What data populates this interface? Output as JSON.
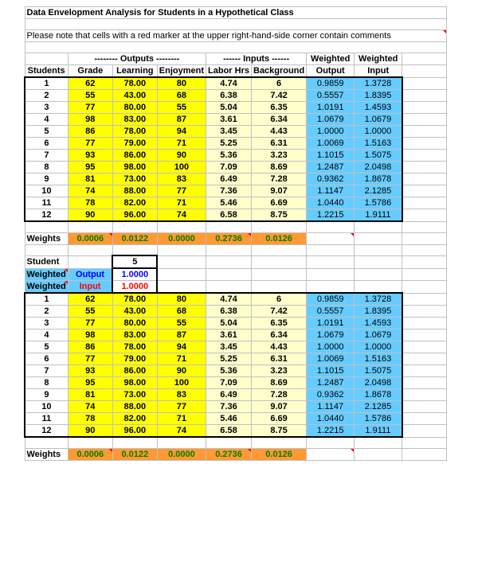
{
  "title": "Data Envelopment Analysis for Students in a Hypothetical Class",
  "note": "Please note that cells with a red marker at the upper right-hand-side corner contain comments",
  "sectionHeaders": {
    "outputs": "-------- Outputs --------",
    "inputs": "------ Inputs ------",
    "weighted": "Weighted",
    "weightedOut": "Weighted",
    "weightedIn": "Weighted",
    "students": "Students",
    "grade": "Grade",
    "learning": "Learning",
    "enjoyment": "Enjoyment",
    "laborHrs": "Labor Hrs",
    "background": "Background",
    "output": "Output",
    "input": "Input",
    "weights": "Weights",
    "student": "Student",
    "weightedRow": "Weighted"
  },
  "studentBox": {
    "id": "5",
    "output": "1.0000",
    "input": "1.0000"
  },
  "weights": {
    "grade": "0.0006",
    "learning": "0.0122",
    "enjoyment": "0.0000",
    "laborHrs": "0.2736",
    "background": "0.0126"
  },
  "rows": [
    {
      "id": "1",
      "grade": "62",
      "learning": "78.00",
      "enjoy": "80",
      "labor": "4.74",
      "bg": "6",
      "wout": "0.9859",
      "win": "1.3728"
    },
    {
      "id": "2",
      "grade": "55",
      "learning": "43.00",
      "enjoy": "68",
      "labor": "6.38",
      "bg": "7.42",
      "wout": "0.5557",
      "win": "1.8395"
    },
    {
      "id": "3",
      "grade": "77",
      "learning": "80.00",
      "enjoy": "55",
      "labor": "5.04",
      "bg": "6.35",
      "wout": "1.0191",
      "win": "1.4593"
    },
    {
      "id": "4",
      "grade": "98",
      "learning": "83.00",
      "enjoy": "87",
      "labor": "3.61",
      "bg": "6.34",
      "wout": "1.0679",
      "win": "1.0679"
    },
    {
      "id": "5",
      "grade": "86",
      "learning": "78.00",
      "enjoy": "94",
      "labor": "3.45",
      "bg": "4.43",
      "wout": "1.0000",
      "win": "1.0000"
    },
    {
      "id": "6",
      "grade": "77",
      "learning": "79.00",
      "enjoy": "71",
      "labor": "5.25",
      "bg": "6.31",
      "wout": "1.0069",
      "win": "1.5163"
    },
    {
      "id": "7",
      "grade": "93",
      "learning": "86.00",
      "enjoy": "90",
      "labor": "5.36",
      "bg": "3.23",
      "wout": "1.1015",
      "win": "1.5075"
    },
    {
      "id": "8",
      "grade": "95",
      "learning": "98.00",
      "enjoy": "100",
      "labor": "7.09",
      "bg": "8.69",
      "wout": "1.2487",
      "win": "2.0498"
    },
    {
      "id": "9",
      "grade": "81",
      "learning": "73.00",
      "enjoy": "83",
      "labor": "6.49",
      "bg": "7.28",
      "wout": "0.9362",
      "win": "1.8678"
    },
    {
      "id": "10",
      "grade": "74",
      "learning": "88.00",
      "enjoy": "77",
      "labor": "7.36",
      "bg": "9.07",
      "wout": "1.1147",
      "win": "2.1285"
    },
    {
      "id": "11",
      "grade": "78",
      "learning": "82.00",
      "enjoy": "71",
      "labor": "5.46",
      "bg": "6.69",
      "wout": "1.0440",
      "win": "1.5786"
    },
    {
      "id": "12",
      "grade": "90",
      "learning": "96.00",
      "enjoy": "74",
      "labor": "6.58",
      "bg": "8.75",
      "wout": "1.2215",
      "win": "1.9111"
    }
  ],
  "colors": {
    "yellow": "#ffff00",
    "lightyellow": "#ffffcc",
    "cyan": "#66ccff",
    "orange": "#ff9933",
    "green": "#008000",
    "red": "#ff0000",
    "blue": "#0000ff"
  }
}
